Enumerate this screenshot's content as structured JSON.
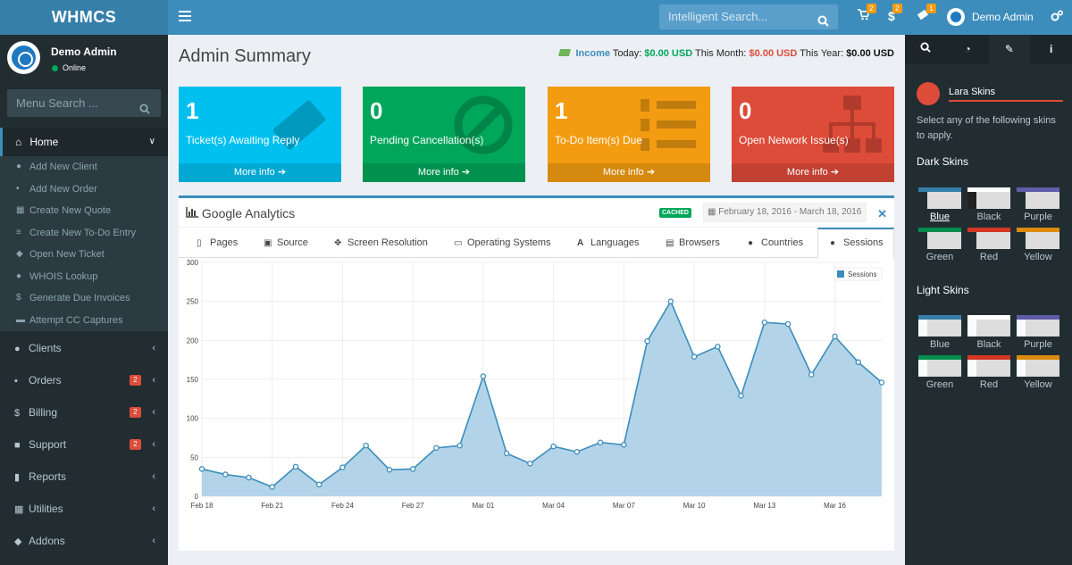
{
  "app": {
    "logo": "WHMCS"
  },
  "topbar": {
    "search_placeholder": "Intelligent Search...",
    "cart_badge": "2",
    "dollar_badge": "2",
    "ticket_badge": "1",
    "user_name": "Demo Admin"
  },
  "sidebar": {
    "user_name": "Demo Admin",
    "user_status": "Online",
    "search_placeholder": "Menu Search ...",
    "home_label": "Home",
    "sub_items": [
      {
        "label": "Add New Client",
        "icon": "user-plus-icon"
      },
      {
        "label": "Add New Order",
        "icon": "cart-icon"
      },
      {
        "label": "Create New Quote",
        "icon": "calculator-icon"
      },
      {
        "label": "Create New To-Do Entry",
        "icon": "list-icon"
      },
      {
        "label": "Open New Ticket",
        "icon": "ticket-icon"
      },
      {
        "label": "WHOIS Lookup",
        "icon": "globe-icon"
      },
      {
        "label": "Generate Due Invoices",
        "icon": "dollar-icon"
      },
      {
        "label": "Attempt CC Captures",
        "icon": "credit-card-icon"
      }
    ],
    "nav": [
      {
        "label": "Clients",
        "icon": "users-icon",
        "badge": ""
      },
      {
        "label": "Orders",
        "icon": "cart-icon",
        "badge": "2"
      },
      {
        "label": "Billing",
        "icon": "dollar-icon",
        "badge": "2"
      },
      {
        "label": "Support",
        "icon": "support-icon",
        "badge": "2"
      },
      {
        "label": "Reports",
        "icon": "file-icon",
        "badge": ""
      },
      {
        "label": "Utilities",
        "icon": "grid-icon",
        "badge": ""
      },
      {
        "label": "Addons",
        "icon": "cubes-icon",
        "badge": ""
      }
    ]
  },
  "header": {
    "title": "Admin Summary",
    "income_label": "Income",
    "today_label": "Today:",
    "today_value": "$0.00 USD",
    "month_label": "This Month:",
    "month_value": "$0.00 USD",
    "year_label": "This Year:",
    "year_value": "$0.00 USD"
  },
  "boxes": [
    {
      "num": "1",
      "text": "Ticket(s) Awaiting Reply",
      "more": "More info",
      "color": "#00c0ef",
      "icon": "ticket-icon"
    },
    {
      "num": "0",
      "text": "Pending Cancellation(s)",
      "more": "More info",
      "color": "#00a65a",
      "icon": "ban-icon"
    },
    {
      "num": "1",
      "text": "To-Do Item(s) Due",
      "more": "More info",
      "color": "#f39c12",
      "icon": "ordered-list-icon"
    },
    {
      "num": "0",
      "text": "Open Network Issue(s)",
      "more": "More info",
      "color": "#dd4b39",
      "icon": "sitemap-icon"
    }
  ],
  "analytics": {
    "title": "Google Analytics",
    "cached": "CACHED",
    "date_range": "February 18, 2016 - March 18, 2016",
    "tabs": [
      "Pages",
      "Source",
      "Screen Resolution",
      "Operating Systems",
      "Languages",
      "Browsers",
      "Countries",
      "Sessions"
    ],
    "active_tab": "Sessions"
  },
  "chart_data": {
    "type": "area",
    "series": [
      {
        "name": "Sessions",
        "values": [
          35,
          28,
          24,
          12,
          38,
          15,
          37,
          65,
          34,
          35,
          62,
          65,
          154,
          55,
          42,
          64,
          57,
          69,
          66,
          199,
          250,
          179,
          192,
          129,
          223,
          221,
          156,
          205,
          172,
          146
        ]
      }
    ],
    "x_tick_labels": [
      "Feb 18",
      "Feb 21",
      "Feb 24",
      "Feb 27",
      "Mar 01",
      "Mar 04",
      "Mar 07",
      "Mar 10",
      "Mar 13",
      "Mar 16"
    ],
    "y_ticks": [
      0,
      50,
      100,
      150,
      200,
      250,
      300
    ],
    "ylim": [
      0,
      300
    ],
    "legend": "top-right",
    "color": "#3c8dbc",
    "fill": "#b3d4e8"
  },
  "control": {
    "title": "Lara Skins",
    "description": "Select any of the following skins to apply.",
    "dark_title": "Dark Skins",
    "light_title": "Light Skins",
    "dark_skins": [
      {
        "label": "Blue",
        "bar": "#367fa9",
        "side": "#222d32"
      },
      {
        "label": "Black",
        "bar": "#fefefe",
        "side": "#222"
      },
      {
        "label": "Purple",
        "bar": "#605ca8",
        "side": "#222d32"
      },
      {
        "label": "Green",
        "bar": "#008d4c",
        "side": "#222d32"
      },
      {
        "label": "Red",
        "bar": "#d33724",
        "side": "#222d32"
      },
      {
        "label": "Yellow",
        "bar": "#db8b0b",
        "side": "#222d32"
      }
    ],
    "light_skins": [
      {
        "label": "Blue",
        "bar": "#367fa9",
        "side": "#f9fafc"
      },
      {
        "label": "Black",
        "bar": "#fefefe",
        "side": "#f9fafc"
      },
      {
        "label": "Purple",
        "bar": "#605ca8",
        "side": "#f9fafc"
      },
      {
        "label": "Green",
        "bar": "#008d4c",
        "side": "#f9fafc"
      },
      {
        "label": "Red",
        "bar": "#d33724",
        "side": "#f9fafc"
      },
      {
        "label": "Yellow",
        "bar": "#db8b0b",
        "side": "#f9fafc"
      }
    ]
  }
}
